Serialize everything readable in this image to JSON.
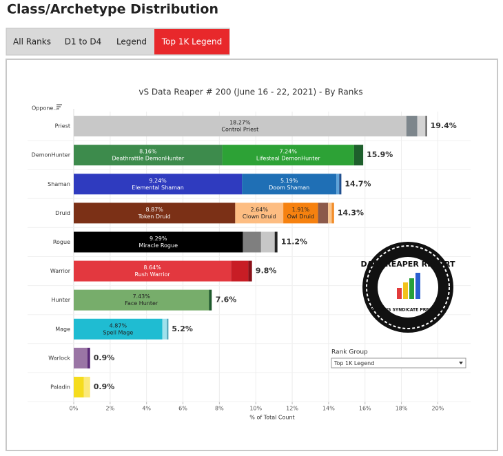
{
  "page_title": "Class/Archetype Distribution",
  "tabs": [
    "All Ranks",
    "D1 to D4",
    "Legend",
    "Top 1K Legend"
  ],
  "active_tab": 3,
  "filter": {
    "label": "Rank Group",
    "selected": "Top 1K Legend"
  },
  "logo": {
    "title": "DATA REAPER REPORT",
    "subtitle": "VICIOUS SYNDICATE PRESENTS"
  },
  "chart_data": {
    "type": "bar",
    "orientation": "horizontal",
    "title": "vS Data Reaper #  200 (June 16 - 22, 2021) - By Ranks",
    "category_header": "Oppone..",
    "xlabel": "% of Total Count",
    "categories": [
      "Priest",
      "DemonHunter",
      "Shaman",
      "Druid",
      "Rogue",
      "Warrior",
      "Hunter",
      "Mage",
      "Warlock",
      "Paladin"
    ],
    "stacks": [
      [
        {
          "name": "Control Priest",
          "value": 18.27,
          "value_label": "18.27%",
          "color": "#c8c8c8"
        },
        {
          "value": 0.6,
          "color": "#7d868c"
        },
        {
          "value": 0.45,
          "color": "#d3d3d3"
        },
        {
          "value": 0.08,
          "color": "#555555"
        }
      ],
      [
        {
          "name": "Deathrattle DemonHunter",
          "value": 8.16,
          "value_label": "8.16%",
          "color": "#3d8b4c"
        },
        {
          "name": "Lifesteal DemonHunter",
          "value": 7.24,
          "value_label": "7.24%",
          "color": "#2da236"
        },
        {
          "value": 0.5,
          "color": "#1e5f2c"
        }
      ],
      [
        {
          "name": "Elemental Shaman",
          "value": 9.24,
          "value_label": "9.24%",
          "color": "#2f3bbf"
        },
        {
          "name": "Doom Shaman",
          "value": 5.19,
          "value_label": "5.19%",
          "color": "#1f6fb5"
        },
        {
          "value": 0.15,
          "color": "#5ea3d9"
        },
        {
          "value": 0.12,
          "color": "#1f4f8f"
        }
      ],
      [
        {
          "name": "Token Druid",
          "value": 8.87,
          "value_label": "8.87%",
          "color": "#7b3016"
        },
        {
          "name": "Clown Druid",
          "value": 2.64,
          "value_label": "2.64%",
          "color": "#fdbd82"
        },
        {
          "name": "Owl Druid",
          "value": 1.91,
          "value_label": "1.91%",
          "color": "#f6810f"
        },
        {
          "value": 0.55,
          "color": "#8c5a4b"
        },
        {
          "value": 0.2,
          "color": "#f9c58e"
        },
        {
          "value": 0.13,
          "color": "#f28e2b"
        }
      ],
      [
        {
          "name": "Miracle Rogue",
          "value": 9.29,
          "value_label": "9.29%",
          "color": "#000000"
        },
        {
          "value": 1.0,
          "color": "#7f7f7f"
        },
        {
          "value": 0.75,
          "color": "#c7c7c7"
        },
        {
          "value": 0.15,
          "color": "#222222"
        }
      ],
      [
        {
          "name": "Rush Warrior",
          "value": 8.64,
          "value_label": "8.64%",
          "color": "#e3383f"
        },
        {
          "value": 0.95,
          "color": "#c81d25"
        },
        {
          "value": 0.2,
          "color": "#8a1018"
        }
      ],
      [
        {
          "name": "Face Hunter",
          "value": 7.43,
          "value_label": "7.43%",
          "color": "#77ad6b"
        },
        {
          "value": 0.15,
          "color": "#1e5a2c"
        }
      ],
      [
        {
          "name": "Spell Mage",
          "value": 4.87,
          "value_label": "4.87%",
          "color": "#1fbcd2"
        },
        {
          "value": 0.25,
          "color": "#9fe1ec"
        },
        {
          "value": 0.08,
          "color": "#4aa0b5"
        }
      ],
      [
        {
          "value": 0.75,
          "color": "#9a75a5"
        },
        {
          "value": 0.15,
          "color": "#5a2a78"
        }
      ],
      [
        {
          "value": 0.55,
          "color": "#f5dc1e"
        },
        {
          "value": 0.35,
          "color": "#fbe97a"
        }
      ]
    ],
    "totals": [
      19.4,
      15.9,
      14.7,
      14.3,
      11.2,
      9.8,
      7.6,
      5.2,
      0.9,
      0.9
    ],
    "total_labels": [
      "19.4%",
      "15.9%",
      "14.7%",
      "14.3%",
      "11.2%",
      "9.8%",
      "7.6%",
      "5.2%",
      "0.9%",
      "0.9%"
    ],
    "xlim": [
      0,
      21.8
    ],
    "xticks": [
      {
        "value": 0,
        "label": "0%"
      },
      {
        "value": 2,
        "label": "2%"
      },
      {
        "value": 4,
        "label": "4%"
      },
      {
        "value": 6,
        "label": "6%"
      },
      {
        "value": 8,
        "label": "8%"
      },
      {
        "value": 10,
        "label": "10%"
      },
      {
        "value": 12,
        "label": "12%"
      },
      {
        "value": 14,
        "label": "14%"
      },
      {
        "value": 16,
        "label": "16%"
      },
      {
        "value": 18,
        "label": "18%"
      },
      {
        "value": 20,
        "label": "20%"
      }
    ],
    "grid": true
  }
}
